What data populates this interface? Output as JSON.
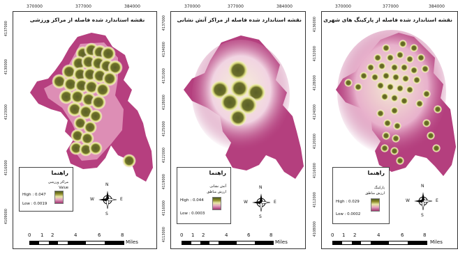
{
  "panels": [
    {
      "id": "sports",
      "title": "نقشه استاندارد شده فاصله از مراکز ورزشی",
      "x_ticks": [
        "370000",
        "377000",
        "384000"
      ],
      "y_ticks": [
        "4137000",
        "4130000",
        "4123000",
        "4116000",
        "4109000"
      ],
      "legend": {
        "title": "راهنما",
        "layer": "مراکز ورزشی",
        "field": "Value",
        "high": "High : 0.047",
        "low": "Low : 0.0019"
      },
      "north": {
        "n": "N",
        "s": "S",
        "e": "E",
        "w": "W"
      },
      "scale": {
        "ticks": [
          "0",
          "1",
          "2",
          "4",
          "6",
          "8"
        ],
        "unit": "Miles"
      }
    },
    {
      "id": "fire",
      "title": "نقشه استاندارد شده فاصله از مراکز آتش نشانی",
      "x_ticks": [
        "370000",
        "377000",
        "384000"
      ],
      "y_ticks": [
        "4137000",
        "4134000",
        "4131000",
        "4128000",
        "4125000",
        "4122000",
        "4119000",
        "4116000",
        "4113000"
      ],
      "legend": {
        "title": "راهنما",
        "layer": "آتش نشانی",
        "field": "ارزش مناطق",
        "high": "High : 0.044",
        "low": "Low : 0.0003"
      },
      "north": {
        "n": "N",
        "s": "S",
        "e": "E",
        "w": "W"
      },
      "scale": {
        "ticks": [
          "0",
          "1",
          "2",
          "4",
          "6",
          "8"
        ],
        "unit": "Miles"
      }
    },
    {
      "id": "parking",
      "title": "نقشه استاندارد شده فاصله از پارکینگ های شهری",
      "x_ticks": [
        "370000",
        "377000",
        "384000"
      ],
      "y_ticks": [
        "4136000",
        "4132000",
        "4128000",
        "4124000",
        "4120000",
        "4116000",
        "4112000",
        "4108000"
      ],
      "legend": {
        "title": "راهنما",
        "layer": "پارکینگ",
        "field": "ارزش مناطق",
        "high": "High : 0.029",
        "low": "Low : 0.0002"
      },
      "north": {
        "n": "N",
        "s": "S",
        "e": "E",
        "w": "W"
      },
      "scale": {
        "ticks": [
          "0",
          "1",
          "2",
          "4",
          "6",
          "8"
        ],
        "unit": "Miles"
      }
    }
  ],
  "colors": {
    "high": "#4d5a20",
    "mid": "#e8e9a6",
    "low": "#a1356e",
    "city_fill": "#b23a7a"
  }
}
